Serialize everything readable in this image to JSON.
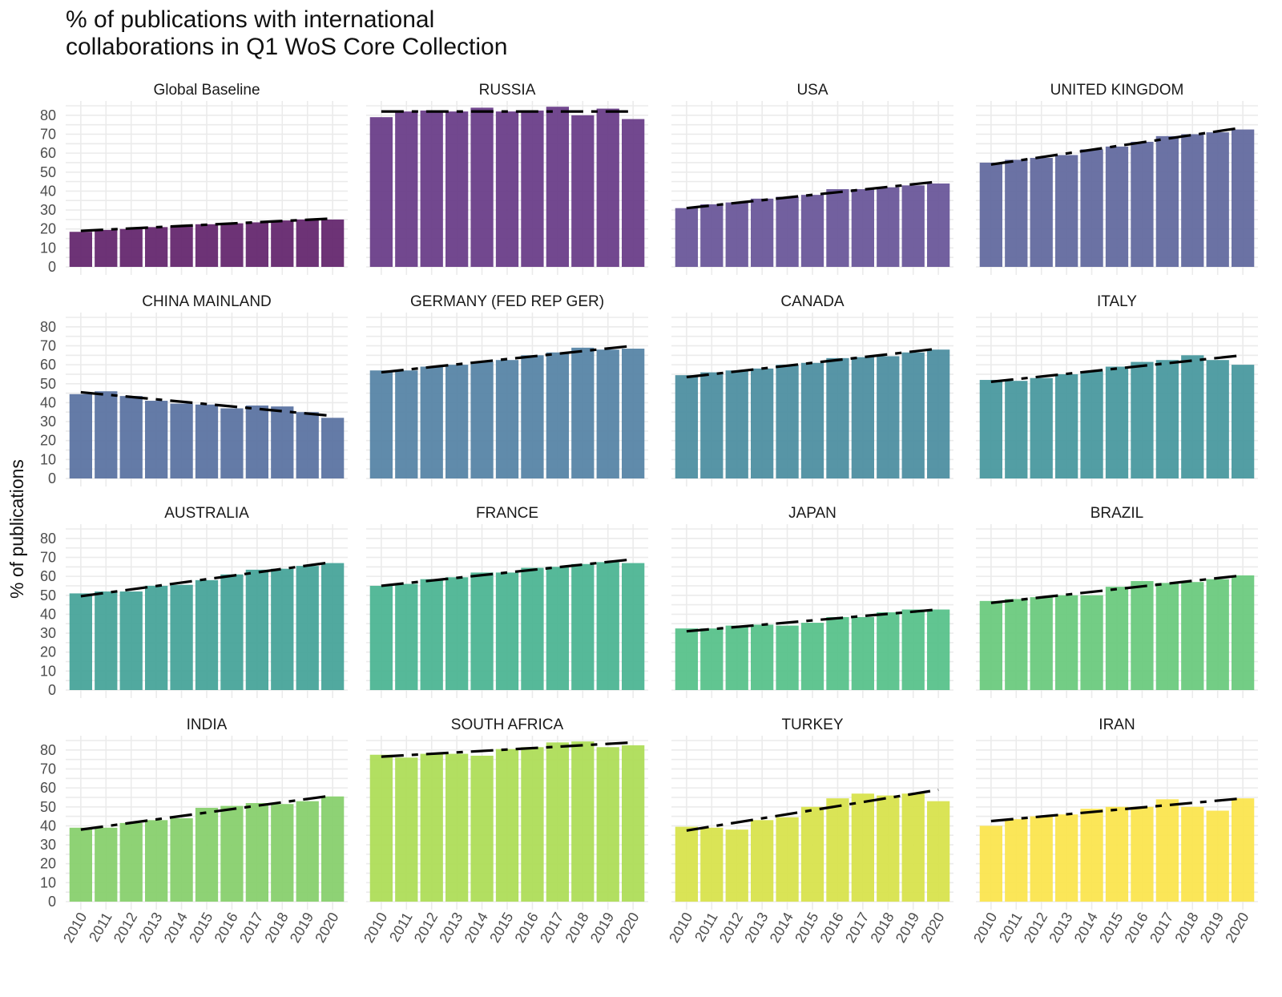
{
  "chart_data": {
    "type": "bar",
    "layout": "facet-grid 4x4",
    "title": "% of publications with international\ncollaborations in Q1 WoS Core Collection",
    "xlabel": "",
    "ylabel": "% of publications",
    "ylim": [
      0,
      85
    ],
    "yticks": [
      0,
      10,
      20,
      30,
      40,
      50,
      60,
      70,
      80
    ],
    "categories": [
      "2010",
      "2011",
      "2012",
      "2013",
      "2014",
      "2015",
      "2016",
      "2017",
      "2018",
      "2019",
      "2020"
    ],
    "grid": true,
    "trendline": "dashed linear fit",
    "panels": [
      {
        "name": "Global Baseline",
        "color": "#65286f",
        "values": [
          18.5,
          19.5,
          20,
          21,
          21.5,
          22.5,
          23,
          23.5,
          24.5,
          25,
          25
        ],
        "trend": [
          19,
          25.5
        ]
      },
      {
        "name": "RUSSIA",
        "color": "#6a3e89",
        "values": [
          79,
          82,
          82.5,
          82,
          84,
          82,
          82.5,
          84.5,
          80,
          83.5,
          78
        ],
        "trend": [
          82,
          82
        ]
      },
      {
        "name": "USA",
        "color": "#6a579a",
        "values": [
          31,
          33,
          34,
          36,
          37,
          38,
          41,
          41,
          42,
          43,
          44
        ],
        "trend": [
          31,
          45
        ]
      },
      {
        "name": "UNITED KINGDOM",
        "color": "#636a9f",
        "values": [
          55,
          56.5,
          57.5,
          59,
          62,
          63.5,
          66,
          69,
          70,
          71,
          72.5
        ],
        "trend": [
          54,
          73.5
        ]
      },
      {
        "name": "CHINA MAINLAND",
        "color": "#5c74a2",
        "values": [
          44.5,
          46,
          43.5,
          41,
          39.5,
          39,
          37,
          38.5,
          38,
          35,
          32
        ],
        "trend": [
          45.5,
          33
        ]
      },
      {
        "name": "GERMANY (FED REP GER)",
        "color": "#5785a6",
        "values": [
          57,
          57,
          59,
          60,
          61.5,
          62.5,
          65,
          66.5,
          69,
          68,
          68.5
        ],
        "trend": [
          56,
          70
        ]
      },
      {
        "name": "CANADA",
        "color": "#4e8fa1",
        "values": [
          54.5,
          56,
          57,
          58,
          60,
          61,
          63.5,
          64,
          64.5,
          66.5,
          68
        ],
        "trend": [
          53.5,
          68.5
        ]
      },
      {
        "name": "ITALY",
        "color": "#4a999f",
        "values": [
          52,
          51.5,
          53,
          55,
          56.5,
          59,
          61.5,
          62.5,
          65,
          62.5,
          60
        ],
        "trend": [
          51,
          65
        ]
      },
      {
        "name": "AUSTRALIA",
        "color": "#48a49a",
        "values": [
          51,
          52,
          52,
          55,
          55.5,
          58,
          61,
          63.5,
          64,
          65.5,
          67
        ],
        "trend": [
          49.5,
          67.5
        ]
      },
      {
        "name": "FRANCE",
        "color": "#4db594",
        "values": [
          55,
          56,
          58.5,
          59.5,
          62,
          62,
          64.5,
          65,
          66.5,
          67.5,
          67
        ],
        "trend": [
          55,
          69
        ]
      },
      {
        "name": "JAPAN",
        "color": "#58c28b",
        "values": [
          32.5,
          32.5,
          34,
          34.5,
          34,
          35.5,
          38.5,
          38.5,
          41,
          42.5,
          42.5
        ],
        "trend": [
          31,
          42.5
        ]
      },
      {
        "name": "BRAZIL",
        "color": "#6cca7e",
        "values": [
          47,
          48,
          49,
          50,
          50,
          54.5,
          57.5,
          56.5,
          57,
          58.5,
          60.5
        ],
        "trend": [
          46,
          60.5
        ]
      },
      {
        "name": "INDIA",
        "color": "#88d06e",
        "values": [
          39,
          39,
          41.5,
          43,
          44,
          49.5,
          50.5,
          52,
          51.5,
          53,
          55.5
        ],
        "trend": [
          38,
          56
        ]
      },
      {
        "name": "SOUTH AFRICA",
        "color": "#aedd58",
        "values": [
          77.5,
          76,
          78,
          78,
          77,
          80.5,
          81.5,
          84,
          84.5,
          81.5,
          82.5
        ],
        "trend": [
          76.5,
          84
        ]
      },
      {
        "name": "TURKEY",
        "color": "#d8e34d",
        "values": [
          39.5,
          39,
          38,
          43,
          44.5,
          50,
          54.5,
          57,
          56,
          57,
          53
        ],
        "trend": [
          37.5,
          59
        ]
      },
      {
        "name": "IRAN",
        "color": "#fbe54f",
        "values": [
          40,
          43.5,
          45,
          46,
          49,
          50,
          50,
          54,
          50,
          48,
          54.5
        ],
        "trend": [
          42.5,
          54.5
        ]
      }
    ]
  }
}
